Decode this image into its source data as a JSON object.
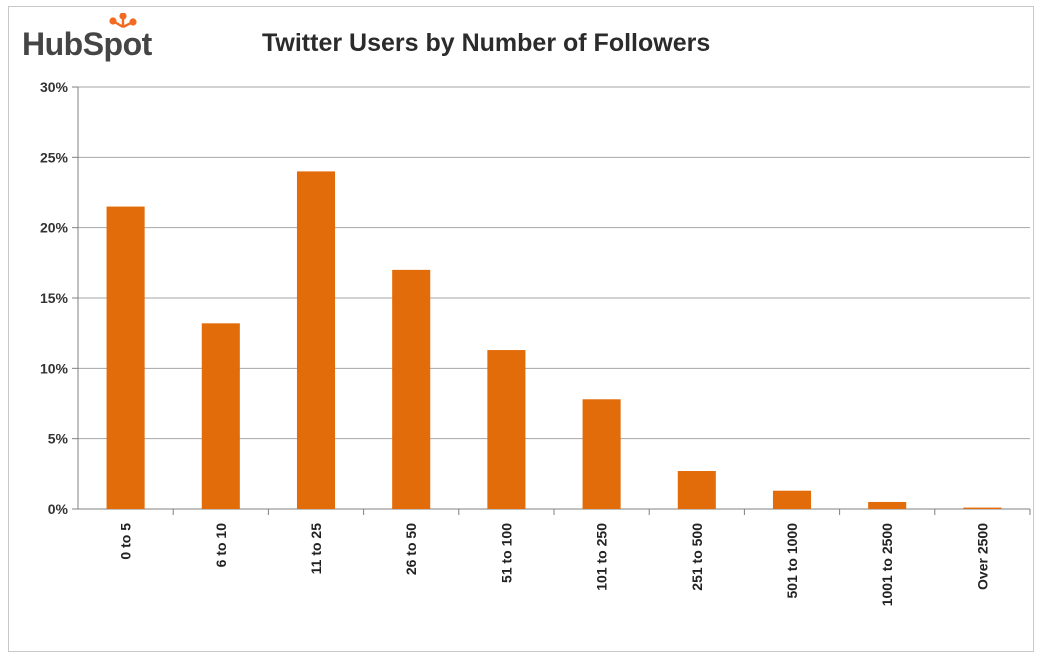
{
  "logo": {
    "text": "HubSpot"
  },
  "colors": {
    "bar": "#e36c0a",
    "logo_accent": "#f26b21",
    "grid": "#a6a6a6"
  },
  "chart_data": {
    "type": "bar",
    "title": "Twitter Users by Number of Followers",
    "xlabel": "",
    "ylabel": "",
    "categories": [
      "0 to 5",
      "6 to 10",
      "11 to 25",
      "26 to 50",
      "51 to 100",
      "101 to 250",
      "251 to 500",
      "501 to 1000",
      "1001 to 2500",
      "Over 2500"
    ],
    "values": [
      21.5,
      13.2,
      24.0,
      17.0,
      11.3,
      7.8,
      2.7,
      1.3,
      0.5,
      0.1
    ],
    "ylim": [
      0,
      30
    ],
    "yticks": [
      0,
      5,
      10,
      15,
      20,
      25,
      30
    ],
    "ytick_labels": [
      "0%",
      "5%",
      "10%",
      "15%",
      "20%",
      "25%",
      "30%"
    ],
    "grid": true,
    "legend": "none"
  }
}
